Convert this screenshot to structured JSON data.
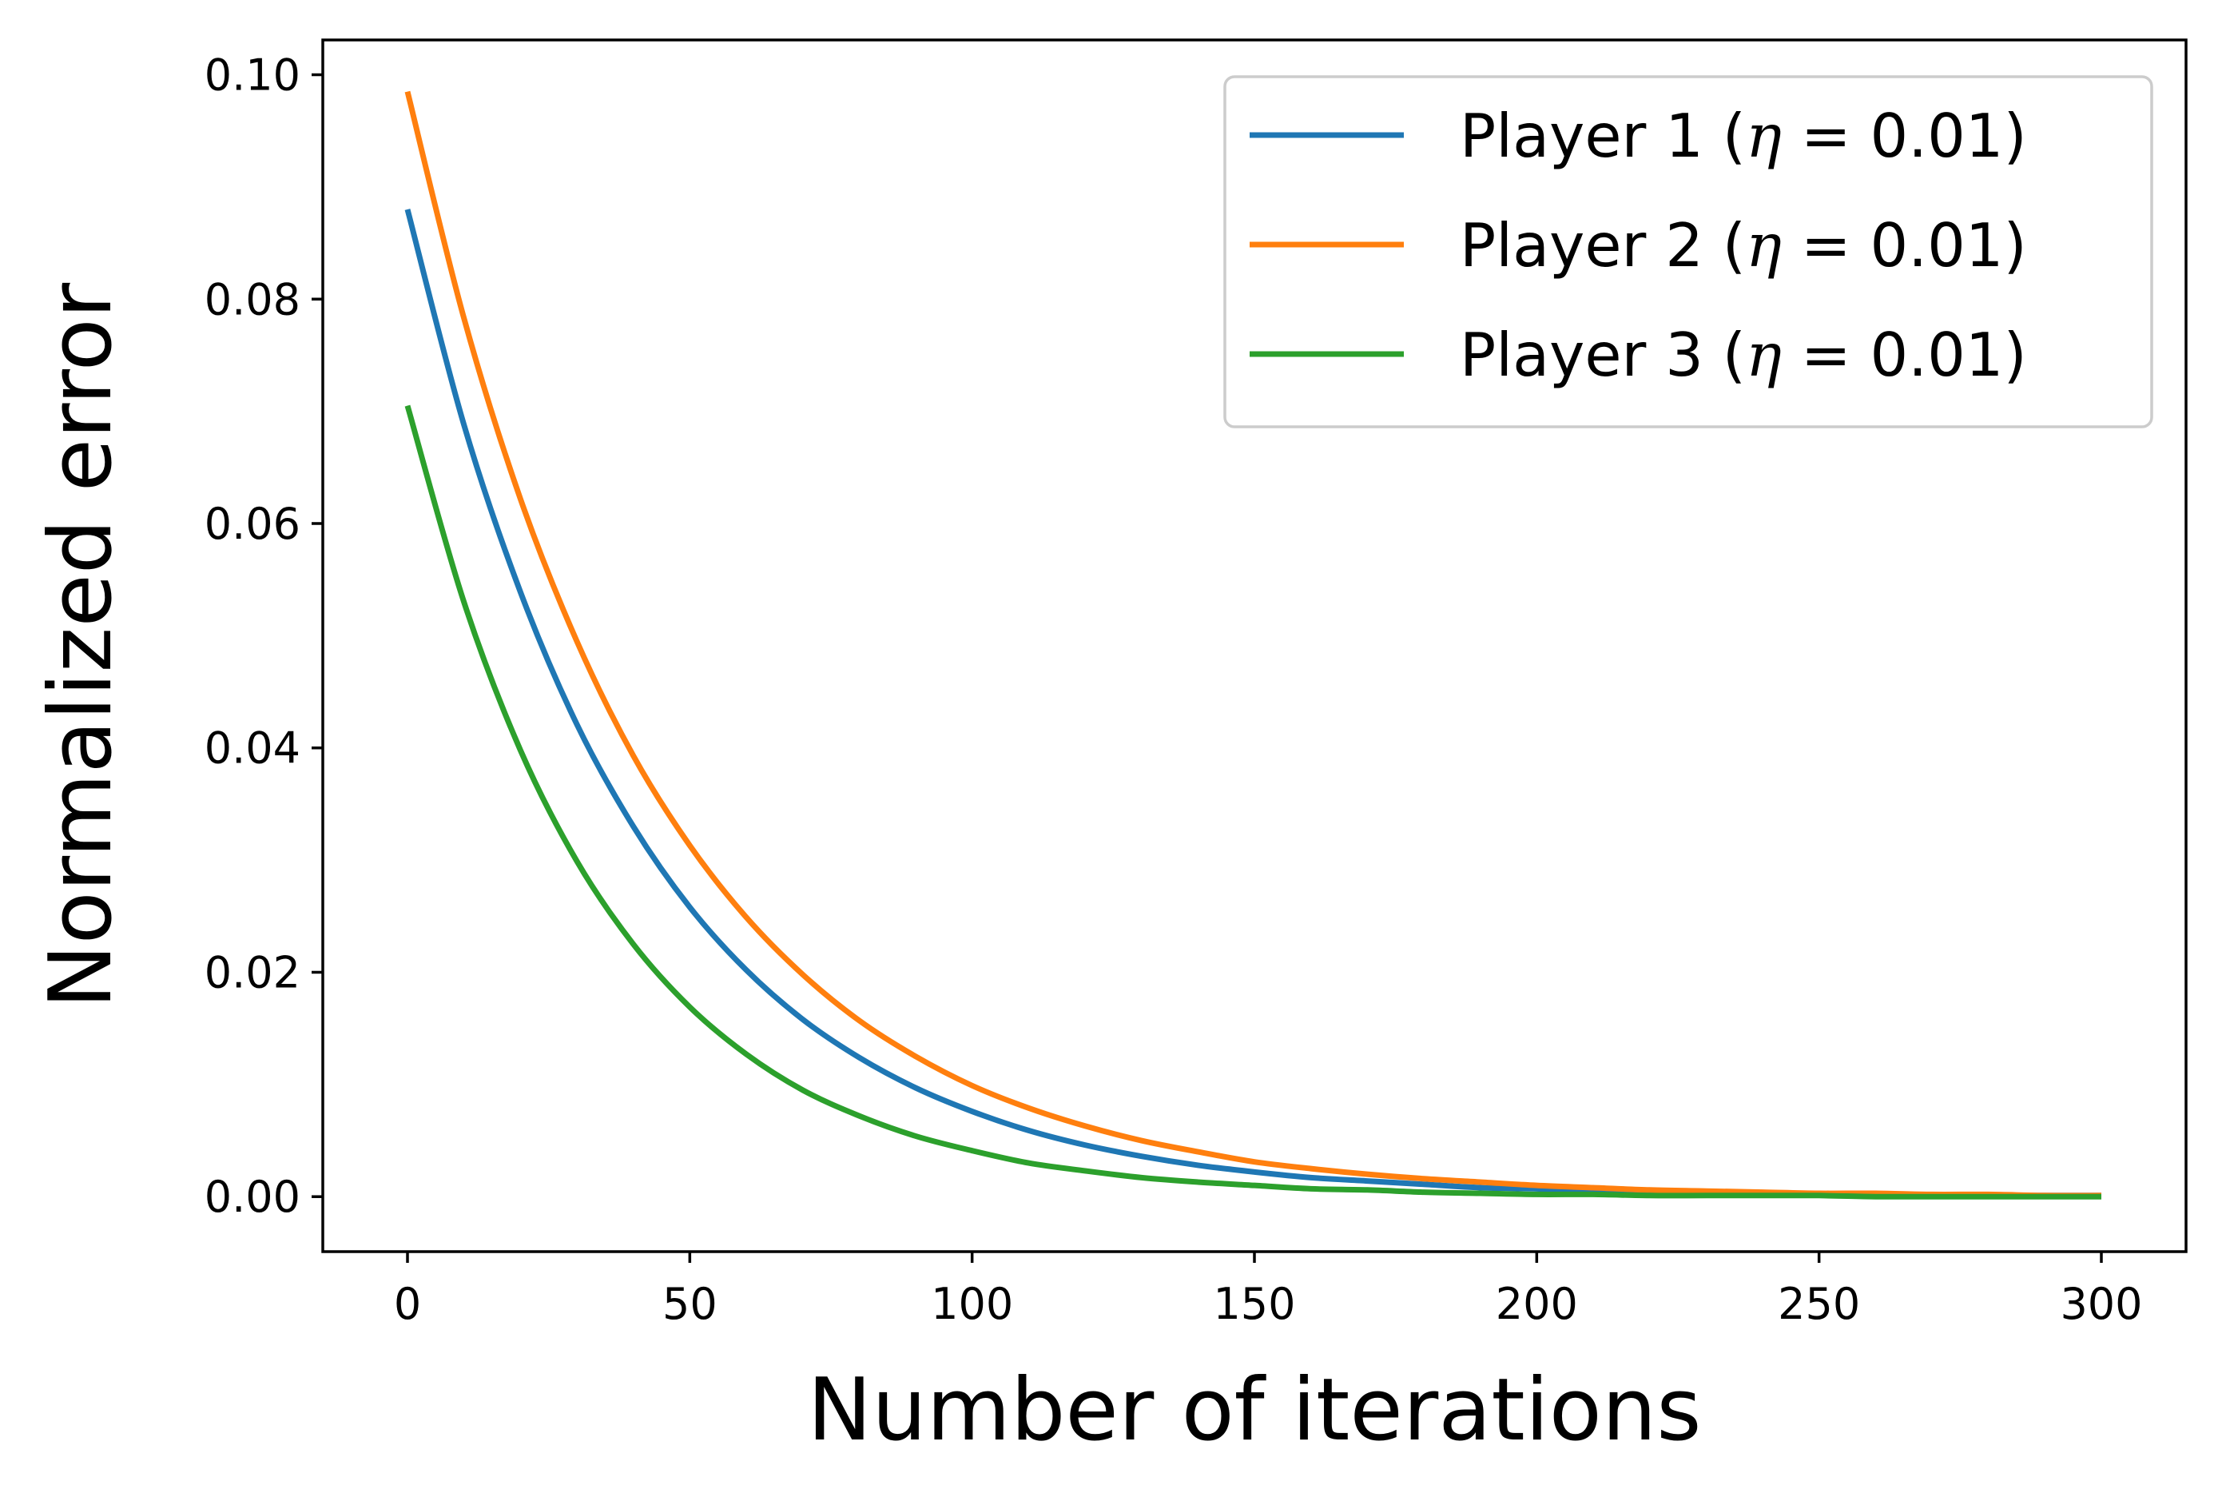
{
  "chart_data": {
    "type": "line",
    "xlabel": "Number of iterations",
    "ylabel": "Normalized error",
    "xlim": [
      -15,
      315
    ],
    "ylim": [
      -0.0049,
      0.1031
    ],
    "x_ticks": [
      0,
      50,
      100,
      150,
      200,
      250,
      300
    ],
    "x_tick_labels": [
      "0",
      "50",
      "100",
      "150",
      "200",
      "250",
      "300"
    ],
    "y_ticks": [
      0.0,
      0.02,
      0.04,
      0.06,
      0.08,
      0.1
    ],
    "y_tick_labels": [
      "0.00",
      "0.02",
      "0.04",
      "0.06",
      "0.08",
      "0.10"
    ],
    "grid": false,
    "legend_position": "top-right",
    "x": [
      0,
      10,
      20,
      30,
      40,
      50,
      60,
      70,
      80,
      90,
      100,
      110,
      120,
      130,
      140,
      150,
      160,
      170,
      180,
      190,
      200,
      210,
      220,
      230,
      240,
      250,
      260,
      270,
      280,
      290,
      300
    ],
    "series": [
      {
        "name": "Player 1 (η = 0.01)",
        "label_text": "Player 1 (",
        "label_eta": "η",
        "label_rest": " = 0.01)",
        "color": "#1f77b4",
        "values": [
          0.088,
          0.0688,
          0.0539,
          0.0421,
          0.033,
          0.0258,
          0.0202,
          0.0158,
          0.0124,
          0.0097,
          0.0076,
          0.0059,
          0.0046,
          0.0036,
          0.0028,
          0.0022,
          0.0017,
          0.0014,
          0.0011,
          0.0008,
          0.0007,
          0.0005,
          0.0004,
          0.0003,
          0.0003,
          0.0002,
          0.0002,
          0.0001,
          0.0001,
          0.0001,
          0.0001
        ]
      },
      {
        "name": "Player 2 (η = 0.01)",
        "label_text": "Player 2 (",
        "label_eta": "η",
        "label_rest": " = 0.01)",
        "color": "#ff7f0e",
        "values": [
          0.0985,
          0.0783,
          0.0622,
          0.0495,
          0.0393,
          0.0313,
          0.0249,
          0.0198,
          0.0157,
          0.0125,
          0.0099,
          0.0079,
          0.0063,
          0.005,
          0.004,
          0.0031,
          0.0025,
          0.002,
          0.0016,
          0.0013,
          0.001,
          0.0008,
          0.0006,
          0.0005,
          0.0004,
          0.0003,
          0.0003,
          0.0002,
          0.0002,
          0.0001,
          0.0001
        ]
      },
      {
        "name": "Player 3 (η = 0.01)",
        "label_text": "Player 3 (",
        "label_eta": "η",
        "label_rest": " = 0.01)",
        "color": "#2ca02c",
        "values": [
          0.0705,
          0.053,
          0.0398,
          0.0299,
          0.0225,
          0.0169,
          0.0127,
          0.0095,
          0.0072,
          0.0054,
          0.0041,
          0.003,
          0.0023,
          0.0017,
          0.0013,
          0.001,
          0.0007,
          0.0006,
          0.0004,
          0.0003,
          0.0002,
          0.0002,
          0.0001,
          0.0001,
          0.0001,
          0.0001,
          0.0,
          0.0,
          0.0,
          0.0,
          0.0
        ]
      }
    ]
  }
}
